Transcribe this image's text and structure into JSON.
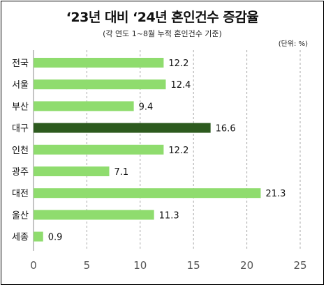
{
  "chart_data": {
    "type": "bar",
    "orientation": "horizontal",
    "title": "‘23년 대비 ‘24년 혼인건수 증감율",
    "subtitle": "(각 연도 1~8월 누적 혼인건수 기준)",
    "unit": "(단위: %)",
    "categories": [
      "전국",
      "서울",
      "부산",
      "대구",
      "인천",
      "광주",
      "대전",
      "울산",
      "세종"
    ],
    "values": [
      12.2,
      12.4,
      9.4,
      16.6,
      12.2,
      7.1,
      21.3,
      11.3,
      0.9
    ],
    "value_labels": [
      "12.2",
      "12.4",
      "9.4",
      "16.6",
      "12.2",
      "7.1",
      "21.3",
      "11.3",
      "0.9"
    ],
    "highlight_category": "대구",
    "x_ticks": [
      "0",
      "5",
      "10",
      "15",
      "20",
      "25"
    ],
    "xlim": [
      0,
      27
    ],
    "grid": "vertical dashed",
    "colors": {
      "bar": "#8fdc6e",
      "highlight": "#2d5a1e",
      "grid": "#aaaaaa"
    }
  }
}
